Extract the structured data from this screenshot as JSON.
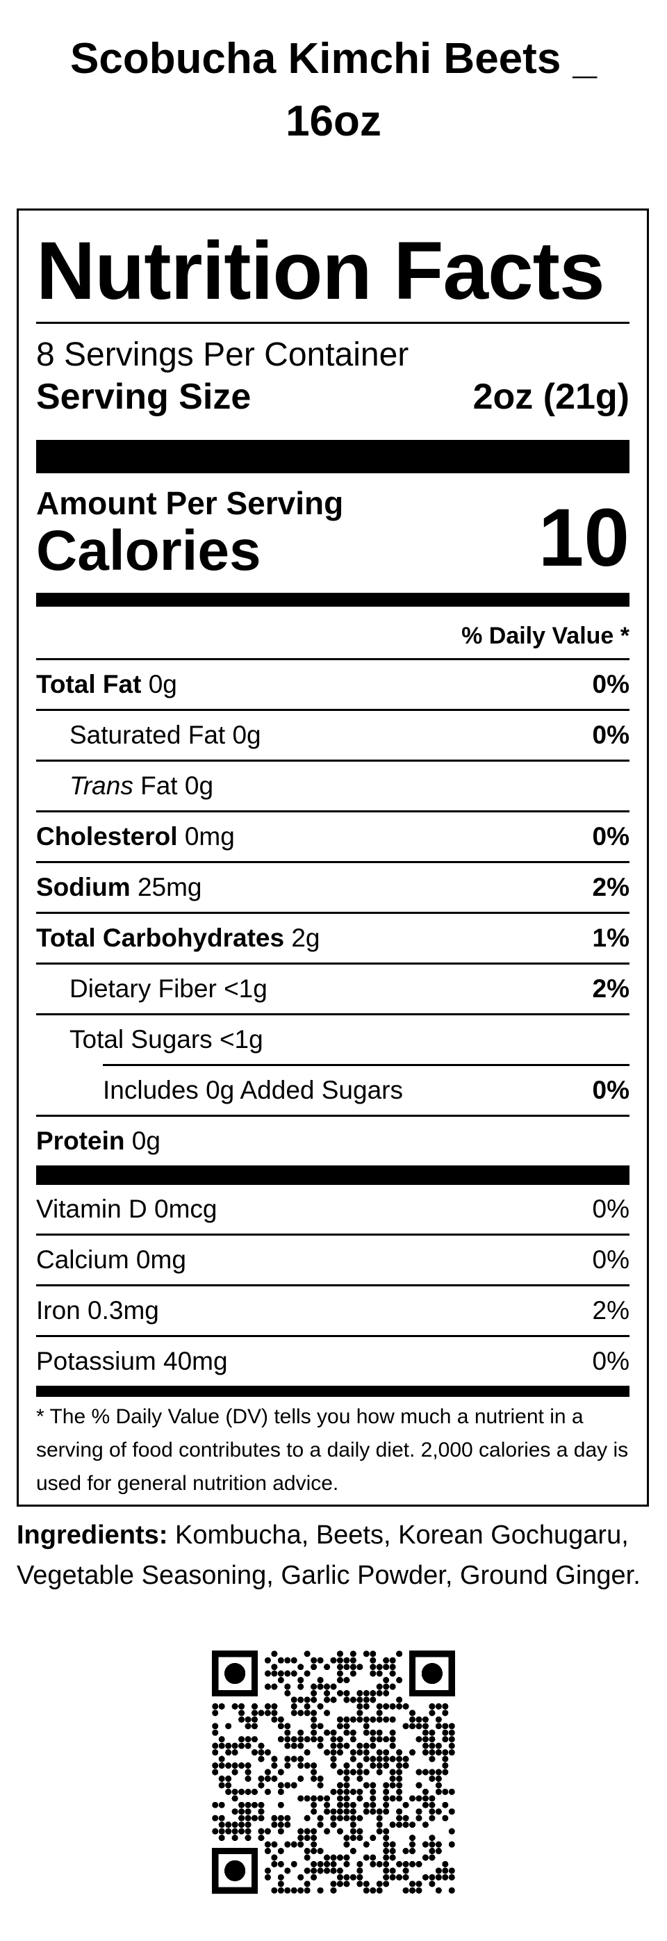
{
  "product": {
    "title": "Scobucha Kimchi Beets _ 16oz"
  },
  "panel": {
    "heading": "Nutrition Facts",
    "servings_per_container": "8 Servings Per Container",
    "serving_size_label": "Serving Size",
    "serving_size_value": "2oz (21g)",
    "amount_per_serving": "Amount Per Serving",
    "calories_label": "Calories",
    "calories_value": "10",
    "daily_value_header": "% Daily Value *",
    "nutrients": [
      {
        "name": "Total Fat",
        "amount": "0g",
        "dv": "0%"
      },
      {
        "name": "Saturated Fat",
        "amount": "0g",
        "dv": "0%"
      },
      {
        "name_italic": "Trans",
        "name": "Fat",
        "amount": "0g",
        "dv": ""
      },
      {
        "name": "Cholesterol",
        "amount": "0mg",
        "dv": "0%"
      },
      {
        "name": "Sodium",
        "amount": "25mg",
        "dv": "2%"
      },
      {
        "name": "Total Carbohydrates",
        "amount": "2g",
        "dv": "1%"
      },
      {
        "name": "Dietary Fiber",
        "amount": "<1g",
        "dv": "2%"
      },
      {
        "name": "Total Sugars",
        "amount": "<1g",
        "dv": ""
      },
      {
        "name": "Includes 0g Added Sugars",
        "amount": "",
        "dv": "0%"
      },
      {
        "name": "Protein",
        "amount": "0g",
        "dv": ""
      }
    ],
    "vitamins": [
      {
        "name": "Vitamin D",
        "amount": "0mcg",
        "dv": "0%"
      },
      {
        "name": "Calcium",
        "amount": "0mg",
        "dv": "0%"
      },
      {
        "name": "Iron",
        "amount": "0.3mg",
        "dv": "2%"
      },
      {
        "name": "Potassium",
        "amount": "40mg",
        "dv": "0%"
      }
    ],
    "footnote": "* The % Daily Value (DV) tells you how much a nutrient in a serving of food contributes to a daily diet. 2,000 calories a day is used for general nutrition advice."
  },
  "ingredients": {
    "label": "Ingredients:",
    "text": "Kombucha, Beets, Korean Gochugaru, Vegetable Seasoning, Garlic Powder, Ground Ginger."
  },
  "qr_code": {
    "icon": "qr-code-icon"
  }
}
